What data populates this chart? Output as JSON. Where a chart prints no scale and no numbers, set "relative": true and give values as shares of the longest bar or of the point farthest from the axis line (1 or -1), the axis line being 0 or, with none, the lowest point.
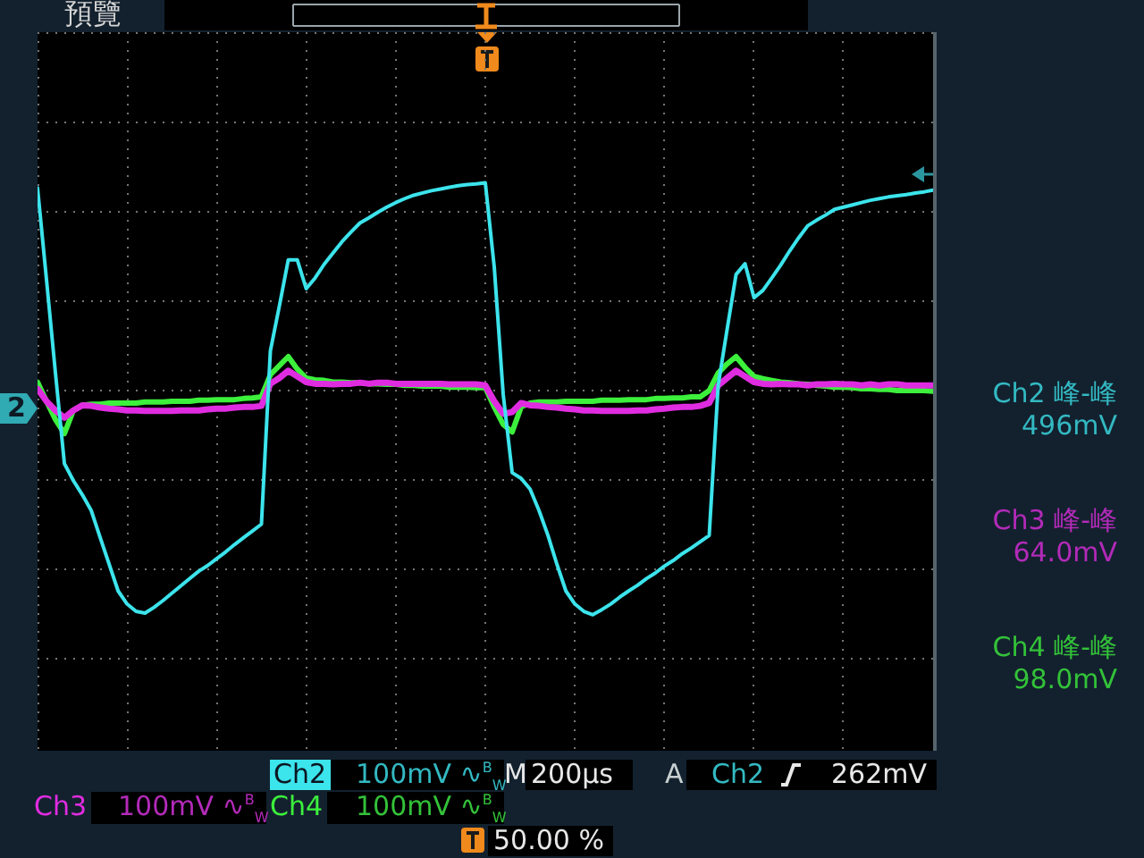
{
  "chart_data": {
    "type": "line",
    "relative": true,
    "grid": true,
    "categories": [
      null,
      null,
      null,
      null,
      null,
      null,
      null,
      null,
      null,
      null,
      null,
      null,
      null,
      null,
      null,
      null,
      null,
      null,
      null,
      null,
      null,
      null,
      null,
      null,
      null,
      null,
      null,
      null,
      null,
      null,
      null,
      null,
      null,
      null,
      null,
      null,
      null,
      null,
      null,
      null,
      null,
      null,
      null,
      null,
      null,
      null,
      null,
      null,
      null,
      null,
      null,
      null,
      null,
      null,
      null,
      null,
      null,
      null,
      null,
      null,
      null,
      null,
      null,
      null,
      null,
      null,
      null,
      null,
      null,
      null,
      null,
      null,
      null,
      null,
      null,
      null,
      null,
      null,
      null,
      null,
      null,
      null,
      null,
      null,
      null,
      null,
      null,
      null,
      null,
      null,
      null,
      null,
      null,
      null,
      null,
      null,
      null,
      null,
      null,
      null,
      null
    ],
    "series": [
      {
        "name": "Ch2",
        "color": "#3ce4ec",
        "values": [
          0.991,
          0.829,
          0.664,
          0.504,
          0.474,
          0.449,
          0.421,
          0.373,
          0.326,
          0.279,
          0.256,
          0.243,
          0.24,
          0.25,
          0.262,
          0.275,
          0.288,
          0.301,
          0.314,
          0.324,
          0.336,
          0.348,
          0.361,
          0.373,
          0.385,
          0.397,
          0.703,
          0.782,
          0.864,
          0.864,
          0.813,
          0.832,
          0.856,
          0.876,
          0.896,
          0.913,
          0.929,
          0.938,
          0.948,
          0.957,
          0.965,
          0.972,
          0.978,
          0.982,
          0.986,
          0.989,
          0.992,
          0.995,
          0.997,
          0.998,
          1,
          0.851,
          0.626,
          0.488,
          0.478,
          0.459,
          0.421,
          0.377,
          0.326,
          0.279,
          0.256,
          0.243,
          0.237,
          0.246,
          0.256,
          0.268,
          0.279,
          0.289,
          0.301,
          0.311,
          0.323,
          0.333,
          0.345,
          0.355,
          0.366,
          0.377,
          0.642,
          0.741,
          0.838,
          0.857,
          0.797,
          0.81,
          0.832,
          0.855,
          0.88,
          0.903,
          0.924,
          0.934,
          0.943,
          0.953,
          0.957,
          0.961,
          0.965,
          0.969,
          0.972,
          0.975,
          0.977,
          0.979,
          0.982,
          0.984,
          0.987
        ]
      },
      {
        "name": "Ch3",
        "color": "#e02ce0",
        "values": [
          0.636,
          0.614,
          0.598,
          0.585,
          0.598,
          0.607,
          0.606,
          0.603,
          0.601,
          0.6,
          0.598,
          0.598,
          0.597,
          0.597,
          0.597,
          0.597,
          0.598,
          0.598,
          0.598,
          0.6,
          0.601,
          0.601,
          0.603,
          0.604,
          0.604,
          0.606,
          0.645,
          0.655,
          0.668,
          0.658,
          0.648,
          0.645,
          0.645,
          0.644,
          0.645,
          0.645,
          0.647,
          0.645,
          0.647,
          0.647,
          0.645,
          0.645,
          0.645,
          0.645,
          0.645,
          0.645,
          0.644,
          0.644,
          0.644,
          0.644,
          0.642,
          0.614,
          0.592,
          0.595,
          0.611,
          0.607,
          0.606,
          0.604,
          0.603,
          0.601,
          0.6,
          0.598,
          0.598,
          0.597,
          0.597,
          0.597,
          0.597,
          0.598,
          0.598,
          0.6,
          0.601,
          0.603,
          0.604,
          0.604,
          0.606,
          0.611,
          0.642,
          0.655,
          0.668,
          0.658,
          0.648,
          0.645,
          0.644,
          0.645,
          0.644,
          0.644,
          0.642,
          0.644,
          0.644,
          0.645,
          0.644,
          0.644,
          0.642,
          0.644,
          0.642,
          0.644,
          0.644,
          0.642,
          0.642,
          0.642,
          0.642
        ]
      },
      {
        "name": "Ch4",
        "color": "#3cf03c",
        "values": [
          0.648,
          0.614,
          0.582,
          0.557,
          0.598,
          0.607,
          0.609,
          0.609,
          0.611,
          0.611,
          0.611,
          0.611,
          0.613,
          0.613,
          0.613,
          0.614,
          0.614,
          0.614,
          0.616,
          0.616,
          0.617,
          0.617,
          0.617,
          0.619,
          0.62,
          0.622,
          0.661,
          0.677,
          0.693,
          0.671,
          0.655,
          0.652,
          0.651,
          0.648,
          0.648,
          0.647,
          0.647,
          0.645,
          0.645,
          0.644,
          0.644,
          0.642,
          0.642,
          0.641,
          0.641,
          0.641,
          0.639,
          0.639,
          0.639,
          0.638,
          0.638,
          0.604,
          0.573,
          0.56,
          0.604,
          0.611,
          0.613,
          0.613,
          0.613,
          0.614,
          0.614,
          0.614,
          0.614,
          0.616,
          0.616,
          0.616,
          0.617,
          0.617,
          0.617,
          0.619,
          0.619,
          0.62,
          0.62,
          0.622,
          0.622,
          0.633,
          0.664,
          0.68,
          0.693,
          0.674,
          0.658,
          0.654,
          0.651,
          0.648,
          0.647,
          0.645,
          0.644,
          0.642,
          0.641,
          0.639,
          0.639,
          0.638,
          0.636,
          0.636,
          0.635,
          0.635,
          0.633,
          0.633,
          0.633,
          0.633,
          0.632
        ]
      }
    ],
    "annotations": [
      "預覽",
      "Ch2 峰-峰",
      "496mV",
      "Ch3 峰-峰",
      "64.0mV",
      "Ch4 峰-峰",
      "98.0mV",
      "100mV ∿$^{B}$$_{W}$",
      "M",
      "200µs",
      "A",
      "Ch2",
      "262mV",
      "100mV ∿$^{B}$$_{W}$",
      "100mV ∿$^{B}$$_{W}$",
      "50.00 %",
      "2"
    ]
  }
}
